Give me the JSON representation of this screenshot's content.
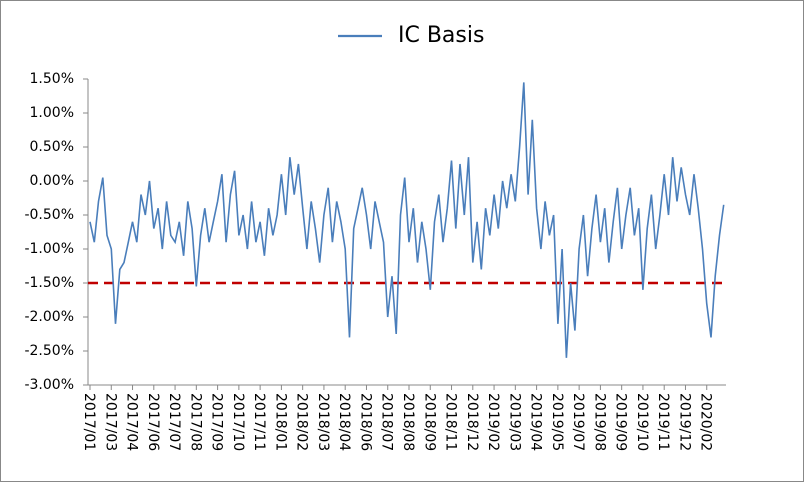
{
  "chart_data": {
    "type": "line",
    "series": [
      {
        "name": "IC Basis",
        "color": "#4a7ebb",
        "values": [
          -0.6,
          -0.9,
          -0.3,
          0.05,
          -0.8,
          -1.0,
          -2.1,
          -1.3,
          -1.2,
          -0.9,
          -0.6,
          -0.9,
          -0.2,
          -0.5,
          0.0,
          -0.7,
          -0.4,
          -1.0,
          -0.3,
          -0.8,
          -0.9,
          -0.6,
          -1.1,
          -0.3,
          -0.7,
          -1.55,
          -0.8,
          -0.4,
          -0.9,
          -0.6,
          -0.3,
          0.1,
          -0.9,
          -0.2,
          0.15,
          -0.8,
          -0.5,
          -1.0,
          -0.3,
          -0.9,
          -0.6,
          -1.1,
          -0.4,
          -0.8,
          -0.5,
          0.1,
          -0.5,
          0.35,
          -0.2,
          0.25,
          -0.4,
          -1.0,
          -0.3,
          -0.7,
          -1.2,
          -0.5,
          -0.1,
          -0.9,
          -0.3,
          -0.6,
          -1.0,
          -2.3,
          -0.7,
          -0.4,
          -0.1,
          -0.5,
          -1.0,
          -0.3,
          -0.6,
          -0.9,
          -2.0,
          -1.4,
          -2.25,
          -0.5,
          0.05,
          -0.9,
          -0.4,
          -1.2,
          -0.6,
          -1.0,
          -1.6,
          -0.6,
          -0.2,
          -0.9,
          -0.4,
          0.3,
          -0.7,
          0.25,
          -0.5,
          0.35,
          -1.2,
          -0.6,
          -1.3,
          -0.4,
          -0.8,
          -0.2,
          -0.7,
          0.0,
          -0.4,
          0.1,
          -0.3,
          0.5,
          1.45,
          -0.2,
          0.9,
          -0.4,
          -1.0,
          -0.3,
          -0.8,
          -0.5,
          -2.1,
          -1.0,
          -2.6,
          -1.5,
          -2.2,
          -1.0,
          -0.5,
          -1.4,
          -0.7,
          -0.2,
          -0.9,
          -0.4,
          -1.2,
          -0.6,
          -0.1,
          -1.0,
          -0.5,
          -0.1,
          -0.8,
          -0.4,
          -1.6,
          -0.7,
          -0.2,
          -1.0,
          -0.5,
          0.1,
          -0.5,
          0.35,
          -0.3,
          0.2,
          -0.2,
          -0.5,
          0.1,
          -0.4,
          -1.0,
          -1.8,
          -2.3,
          -1.4,
          -0.8,
          -0.35
        ]
      }
    ],
    "categories": [
      "2017/01",
      null,
      null,
      null,
      null,
      "2017/03",
      null,
      null,
      null,
      null,
      "2017/04",
      null,
      null,
      null,
      null,
      "2017/06",
      null,
      null,
      null,
      null,
      "2017/07",
      null,
      null,
      null,
      null,
      "2017/08",
      null,
      null,
      null,
      null,
      "2017/09",
      null,
      null,
      null,
      null,
      "2017/10",
      null,
      null,
      null,
      null,
      "2017/11",
      null,
      null,
      null,
      null,
      "2018/01",
      null,
      null,
      null,
      null,
      "2018/02",
      null,
      null,
      null,
      null,
      "2018/03",
      null,
      null,
      null,
      null,
      "2018/04",
      null,
      null,
      null,
      null,
      "2018/06",
      null,
      null,
      null,
      null,
      "2018/07",
      null,
      null,
      null,
      null,
      "2018/08",
      null,
      null,
      null,
      null,
      "2018/09",
      null,
      null,
      null,
      null,
      "2018/11",
      null,
      null,
      null,
      null,
      "2018/12",
      null,
      null,
      null,
      null,
      "2019/02",
      null,
      null,
      null,
      null,
      "2019/03",
      null,
      null,
      null,
      null,
      "2019/04",
      null,
      null,
      null,
      null,
      "2019/05",
      null,
      null,
      null,
      null,
      "2019/07",
      null,
      null,
      null,
      null,
      "2019/08",
      null,
      null,
      null,
      null,
      "2019/09",
      null,
      null,
      null,
      null,
      "2019/10",
      null,
      null,
      null,
      null,
      "2019/11",
      null,
      null,
      null,
      null,
      "2019/12",
      null,
      null,
      null,
      null,
      "2020/02",
      null,
      null,
      null,
      null
    ],
    "ylim": [
      -3.0,
      1.5
    ],
    "yticks": [
      {
        "value": 1.5,
        "label": "1.50%"
      },
      {
        "value": 1.0,
        "label": "1.00%"
      },
      {
        "value": 0.5,
        "label": "0.50%"
      },
      {
        "value": 0.0,
        "label": "0.00%"
      },
      {
        "value": -0.5,
        "label": "-0.50%"
      },
      {
        "value": -1.0,
        "label": "-1.00%"
      },
      {
        "value": -1.5,
        "label": "-1.50%"
      },
      {
        "value": -2.0,
        "label": "-2.00%"
      },
      {
        "value": -2.5,
        "label": "-2.50%"
      },
      {
        "value": -3.0,
        "label": "-3.00%"
      }
    ],
    "reference_line": {
      "value": -1.5,
      "color": "#c00000"
    },
    "legend": "top"
  }
}
